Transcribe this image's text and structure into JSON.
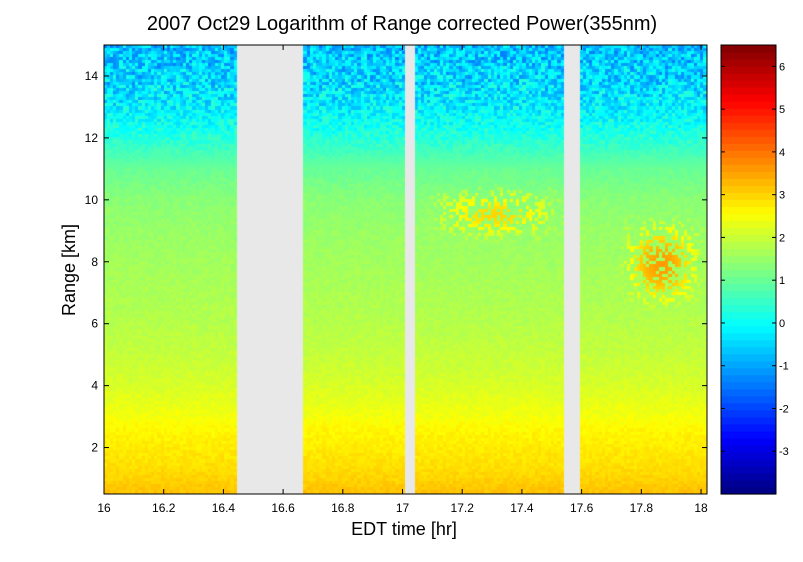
{
  "chart_data": {
    "type": "heatmap",
    "title": "2007 Oct29  Logarithm of Range corrected Power(355nm)",
    "xlabel": "EDT time [hr]",
    "ylabel": "Range [km]",
    "xlim": [
      16.0,
      18.02
    ],
    "ylim": [
      0.5,
      15.0
    ],
    "x_ticks": [
      16,
      16.2,
      16.4,
      16.6,
      16.8,
      17,
      17.2,
      17.4,
      17.6,
      17.8,
      18
    ],
    "x_tick_labels": [
      "16",
      "16.2",
      "16.4",
      "16.6",
      "16.8",
      "17",
      "17.2",
      "17.4",
      "17.6",
      "17.8",
      "18"
    ],
    "y_ticks": [
      2,
      4,
      6,
      8,
      10,
      12,
      14
    ],
    "y_tick_labels": [
      "2",
      "4",
      "6",
      "8",
      "10",
      "12",
      "14"
    ],
    "colorbar": {
      "colormap": "jet",
      "clim": [
        -4.0,
        6.5
      ],
      "ticks": [
        -3,
        -2,
        -1,
        0,
        1,
        2,
        3,
        4,
        5,
        6
      ],
      "tick_labels": [
        "-3",
        "-2",
        "-1",
        "0",
        "1",
        "2",
        "3",
        "4",
        "5",
        "6"
      ]
    },
    "missing_data_intervals": [
      [
        16.45,
        16.67
      ],
      [
        17.01,
        17.04
      ],
      [
        17.54,
        17.59
      ]
    ],
    "missing_color": "#e8e8e8",
    "vertical_profile": {
      "range_km": [
        0.5,
        1.0,
        1.5,
        2.0,
        2.5,
        3.0,
        4.0,
        5.0,
        6.0,
        7.0,
        8.0,
        9.0,
        10.0,
        11.0,
        12.0,
        13.0,
        14.0,
        15.0
      ],
      "log_power": [
        3.2,
        3.0,
        2.85,
        2.75,
        2.65,
        2.45,
        2.15,
        1.95,
        1.8,
        1.7,
        1.6,
        1.5,
        1.35,
        1.0,
        0.3,
        -0.2,
        -0.5,
        -0.7
      ]
    },
    "cloud_layers": [
      {
        "time_start": 17.08,
        "time_end": 17.55,
        "range_start": 8.6,
        "range_end": 10.4,
        "peak_log_power": 3.0
      },
      {
        "time_start": 17.72,
        "time_end": 18.02,
        "range_start": 6.3,
        "range_end": 9.5,
        "peak_log_power": 3.6
      }
    ]
  }
}
